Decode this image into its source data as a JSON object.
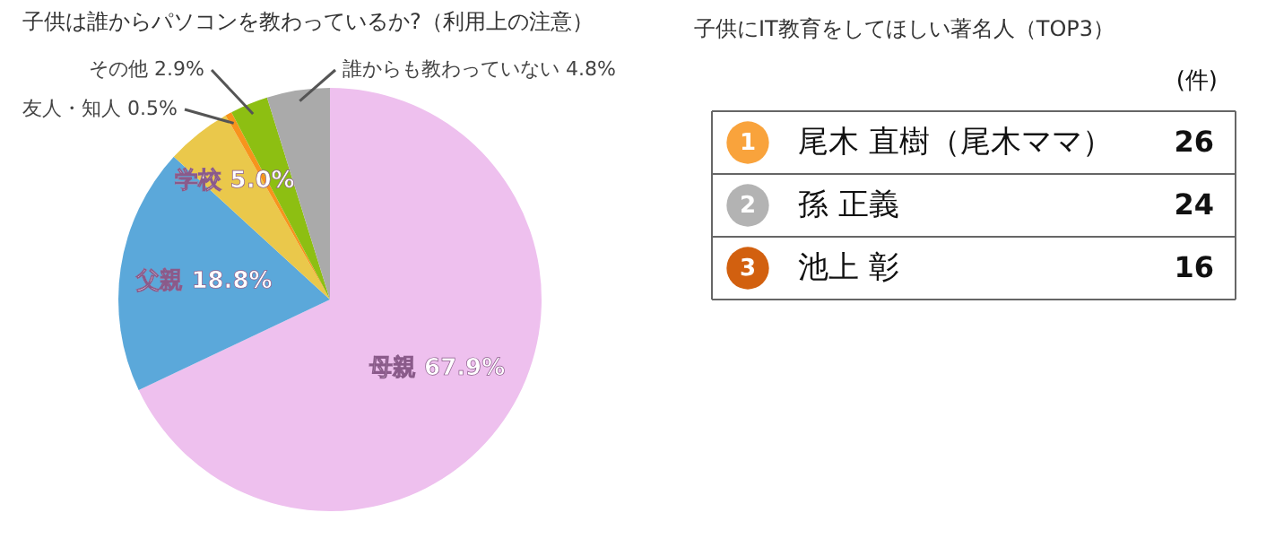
{
  "chart_data": [
    {
      "type": "pie",
      "title": "子供は誰からパソコンを教わっているか?（利用上の注意）",
      "categories": [
        "母親",
        "父親",
        "学校",
        "友人・知人",
        "その他",
        "誰からも教わっていない"
      ],
      "values": [
        67.9,
        18.8,
        5.0,
        0.5,
        2.9,
        4.8
      ],
      "colors": [
        "#eec0ee",
        "#5ba8da",
        "#eac84b",
        "#f7941d",
        "#8dbf12",
        "#aaaaaa"
      ],
      "value_labels": [
        "67.9%",
        "18.8%",
        "5.0%",
        "0.5%",
        "2.9%",
        "4.8%"
      ]
    },
    {
      "type": "other",
      "title": "子供にIT教育をしてほしい著名人（TOP3）",
      "categories": [
        "尾木 直樹（尾木ママ）",
        "孫 正義",
        "池上 彰"
      ],
      "values": [
        26,
        24,
        16
      ],
      "data_labels": true,
      "colors": [
        "#f9a33c",
        "#b3b3b3",
        "#d2600f"
      ],
      "annotations": [
        "(件)",
        "1",
        "2",
        "3"
      ]
    }
  ]
}
